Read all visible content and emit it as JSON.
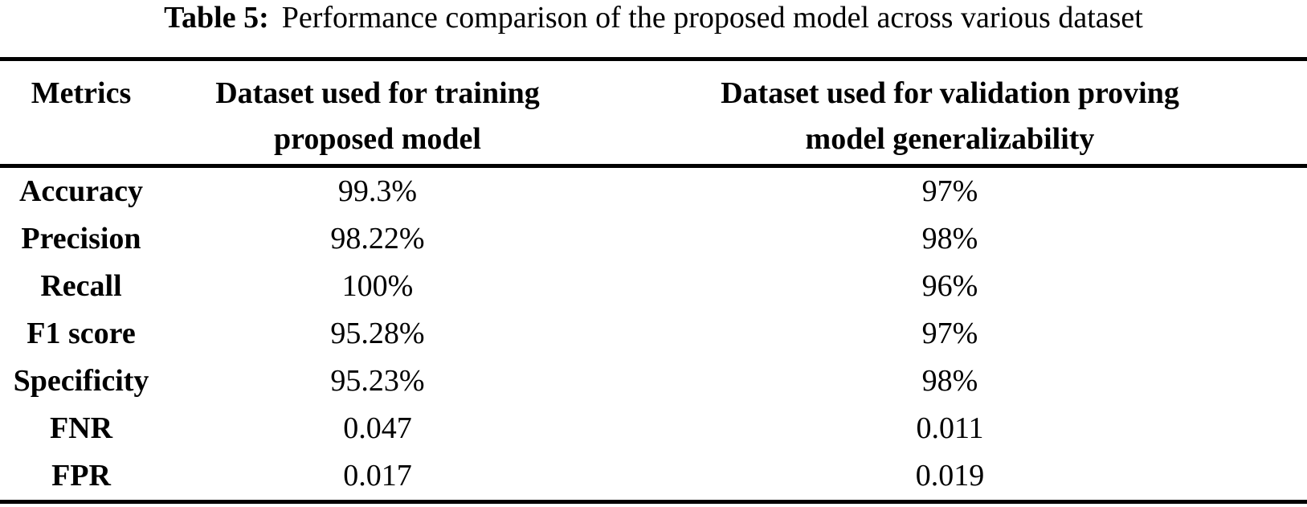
{
  "caption": {
    "label": "Table 5:",
    "text": "Performance comparison of the proposed model across various dataset"
  },
  "columns": [
    {
      "lines": [
        "Metrics"
      ]
    },
    {
      "lines": [
        "Dataset used for training",
        "proposed model"
      ]
    },
    {
      "lines": [
        "Dataset used for validation proving",
        "model generalizability"
      ]
    }
  ],
  "rows": [
    {
      "metric": "Accuracy",
      "training": "99.3%",
      "validation": "97%"
    },
    {
      "metric": "Precision",
      "training": "98.22%",
      "validation": "98%"
    },
    {
      "metric": "Recall",
      "training": "100%",
      "validation": "96%"
    },
    {
      "metric": "F1 score",
      "training": "95.28%",
      "validation": "97%"
    },
    {
      "metric": "Specificity",
      "training": "95.23%",
      "validation": "98%"
    },
    {
      "metric": "FNR",
      "training": "0.047",
      "validation": "0.011"
    },
    {
      "metric": "FPR",
      "training": "0.017",
      "validation": "0.019"
    }
  ],
  "style": {
    "text_color": "#000000",
    "background_color": "#ffffff",
    "rule_color": "#000000"
  },
  "chart_data": {
    "type": "table",
    "title": "Table 5: Performance comparison of the proposed model across various dataset",
    "columns": [
      "Metrics",
      "Dataset used for training proposed model",
      "Dataset used for validation proving model generalizability"
    ],
    "rows": [
      [
        "Accuracy",
        "99.3%",
        "97%"
      ],
      [
        "Precision",
        "98.22%",
        "98%"
      ],
      [
        "Recall",
        "100%",
        "96%"
      ],
      [
        "F1 score",
        "95.28%",
        "97%"
      ],
      [
        "Specificity",
        "95.23%",
        "98%"
      ],
      [
        "FNR",
        "0.047",
        "0.011"
      ],
      [
        "FPR",
        "0.017",
        "0.019"
      ]
    ]
  }
}
